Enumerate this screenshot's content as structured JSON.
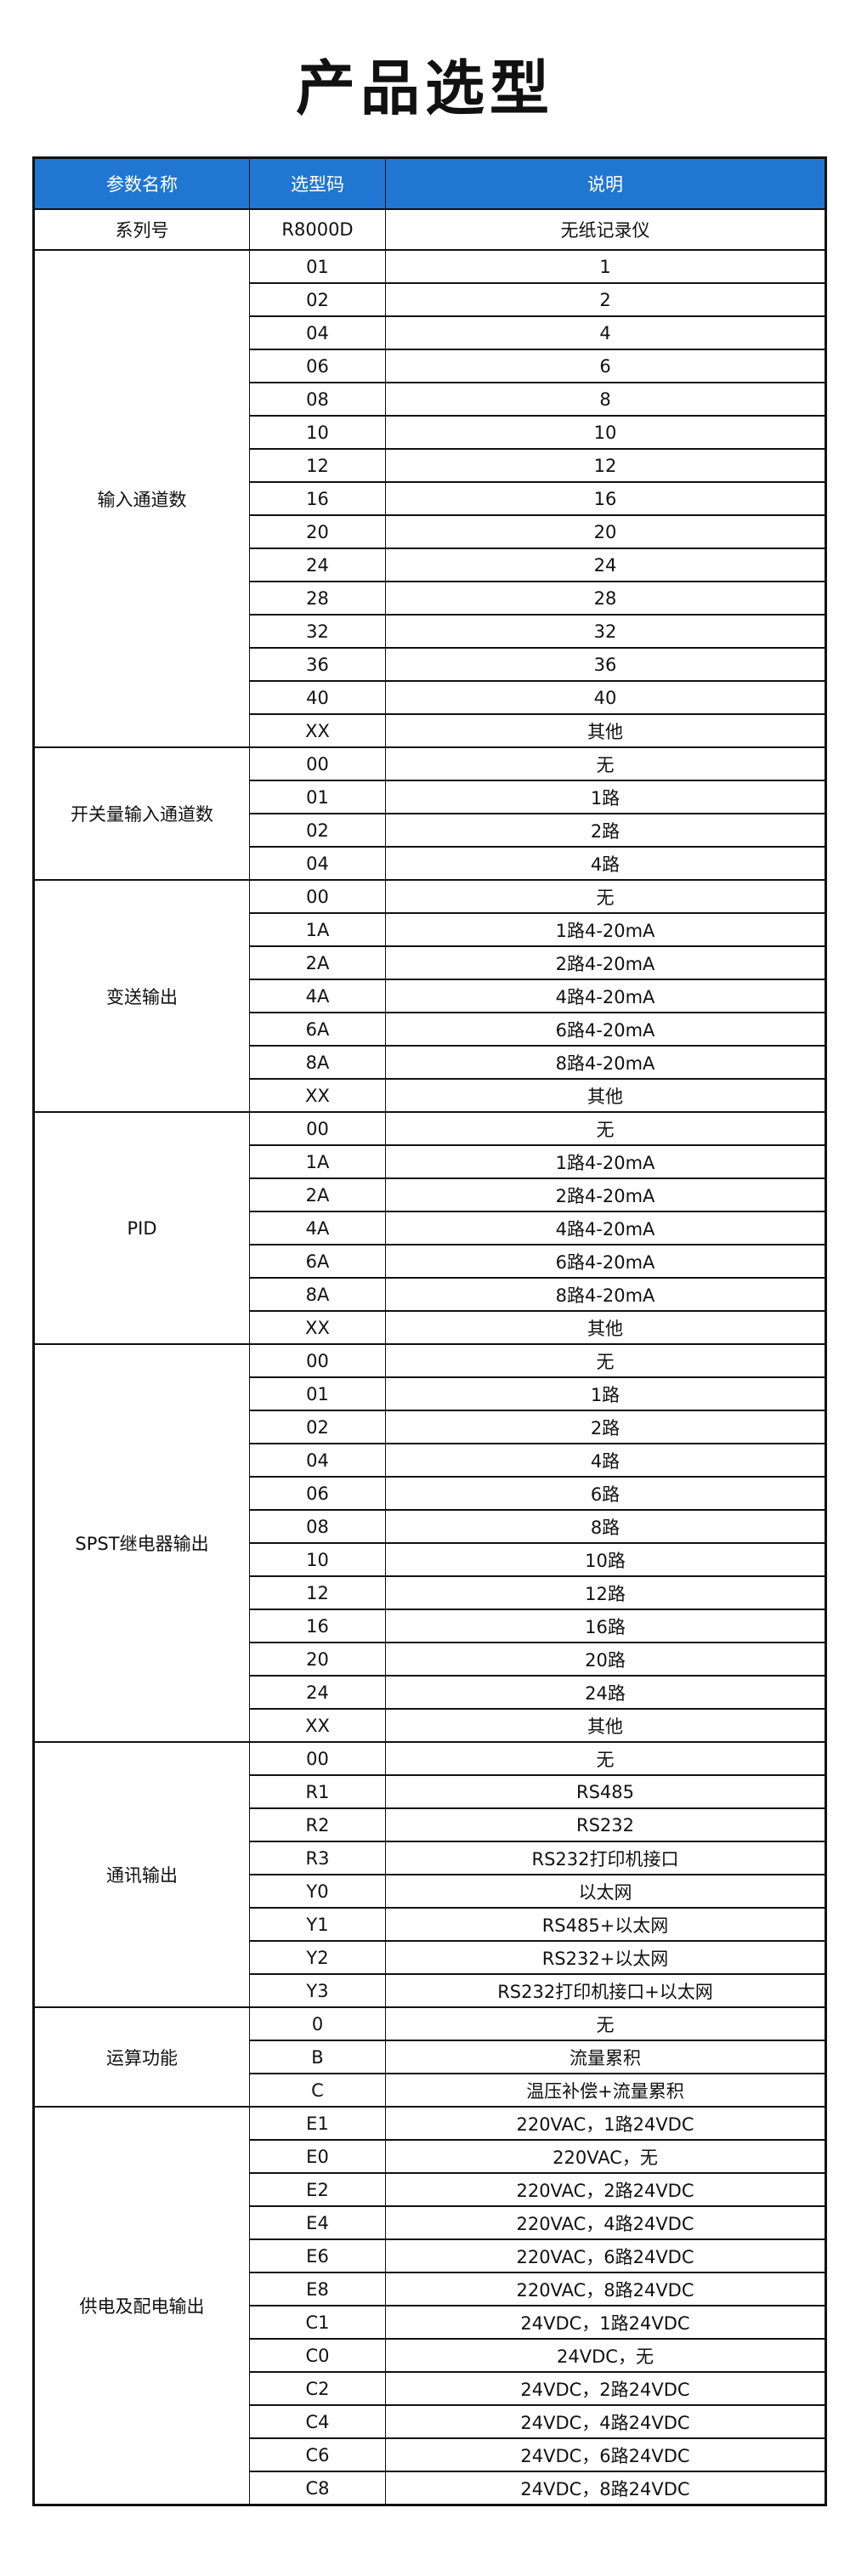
{
  "title": "产品选型",
  "colors": {
    "header_bg": "#2176d2",
    "header_text": "#ffffff",
    "border": "#111111"
  },
  "table": {
    "headers": [
      "参数名称",
      "选型码",
      "说明"
    ],
    "series": {
      "name": "系列号",
      "code": "R8000D",
      "desc": "无纸记录仪"
    },
    "groups": [
      {
        "name": "输入通道数",
        "rows": [
          [
            "01",
            "1"
          ],
          [
            "02",
            "2"
          ],
          [
            "04",
            "4"
          ],
          [
            "06",
            "6"
          ],
          [
            "08",
            "8"
          ],
          [
            "10",
            "10"
          ],
          [
            "12",
            "12"
          ],
          [
            "16",
            "16"
          ],
          [
            "20",
            "20"
          ],
          [
            "24",
            "24"
          ],
          [
            "28",
            "28"
          ],
          [
            "32",
            "32"
          ],
          [
            "36",
            "36"
          ],
          [
            "40",
            "40"
          ],
          [
            "XX",
            "其他"
          ]
        ]
      },
      {
        "name": "开关量输入通道数",
        "rows": [
          [
            "00",
            "无"
          ],
          [
            "01",
            "1路"
          ],
          [
            "02",
            "2路"
          ],
          [
            "04",
            "4路"
          ]
        ]
      },
      {
        "name": "变送输出",
        "rows": [
          [
            "00",
            "无"
          ],
          [
            "1A",
            "1路4-20mA"
          ],
          [
            "2A",
            "2路4-20mA"
          ],
          [
            "4A",
            "4路4-20mA"
          ],
          [
            "6A",
            "6路4-20mA"
          ],
          [
            "8A",
            "8路4-20mA"
          ],
          [
            "XX",
            "其他"
          ]
        ]
      },
      {
        "name": "PID",
        "rows": [
          [
            "00",
            "无"
          ],
          [
            "1A",
            "1路4-20mA"
          ],
          [
            "2A",
            "2路4-20mA"
          ],
          [
            "4A",
            "4路4-20mA"
          ],
          [
            "6A",
            "6路4-20mA"
          ],
          [
            "8A",
            "8路4-20mA"
          ],
          [
            "XX",
            "其他"
          ]
        ]
      },
      {
        "name": "SPST继电器输出",
        "rows": [
          [
            "00",
            "无"
          ],
          [
            "01",
            "1路"
          ],
          [
            "02",
            "2路"
          ],
          [
            "04",
            "4路"
          ],
          [
            "06",
            "6路"
          ],
          [
            "08",
            "8路"
          ],
          [
            "10",
            "10路"
          ],
          [
            "12",
            "12路"
          ],
          [
            "16",
            "16路"
          ],
          [
            "20",
            "20路"
          ],
          [
            "24",
            "24路"
          ],
          [
            "XX",
            "其他"
          ]
        ]
      },
      {
        "name": "通讯输出",
        "rows": [
          [
            "00",
            "无"
          ],
          [
            "R1",
            "RS485"
          ],
          [
            "R2",
            "RS232"
          ],
          [
            "R3",
            "RS232打印机接口"
          ],
          [
            "Y0",
            "以太网"
          ],
          [
            "Y1",
            "RS485+以太网"
          ],
          [
            "Y2",
            "RS232+以太网"
          ],
          [
            "Y3",
            "RS232打印机接口+以太网"
          ]
        ]
      },
      {
        "name": "运算功能",
        "rows": [
          [
            "0",
            "无"
          ],
          [
            "B",
            "流量累积"
          ],
          [
            "C",
            "温压补偿+流量累积"
          ]
        ]
      },
      {
        "name": "供电及配电输出",
        "rows": [
          [
            "E1",
            "220VAC，1路24VDC"
          ],
          [
            "E0",
            "220VAC，无"
          ],
          [
            "E2",
            "220VAC，2路24VDC"
          ],
          [
            "E4",
            "220VAC，4路24VDC"
          ],
          [
            "E6",
            "220VAC，6路24VDC"
          ],
          [
            "E8",
            "220VAC，8路24VDC"
          ],
          [
            "C1",
            "24VDC，1路24VDC"
          ],
          [
            "C0",
            "24VDC，无"
          ],
          [
            "C2",
            "24VDC，2路24VDC"
          ],
          [
            "C4",
            "24VDC，4路24VDC"
          ],
          [
            "C6",
            "24VDC，6路24VDC"
          ],
          [
            "C8",
            "24VDC，8路24VDC"
          ]
        ]
      }
    ]
  }
}
